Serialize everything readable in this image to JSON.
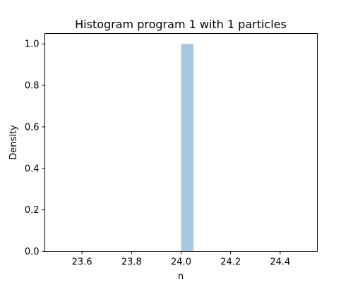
{
  "chart_data": {
    "type": "bar",
    "title": "Histogram program 1 with 1 particles",
    "xlabel": "n",
    "ylabel": "Density",
    "xlim": [
      23.45,
      24.55
    ],
    "ylim": [
      0.0,
      1.05
    ],
    "xticks": [
      23.6,
      23.8,
      24.0,
      24.2,
      24.4
    ],
    "xtick_labels": [
      "23.6",
      "23.8",
      "24.0",
      "24.2",
      "24.4"
    ],
    "yticks": [
      0.0,
      0.2,
      0.4,
      0.6,
      0.8,
      1.0
    ],
    "ytick_labels": [
      "0.0",
      "0.2",
      "0.4",
      "0.6",
      "0.8",
      "1.0"
    ],
    "bins": [
      {
        "x0": 24.0,
        "x1": 24.05,
        "value": 1.0
      }
    ],
    "bar_color": "#a6c8e0",
    "grid": false
  }
}
